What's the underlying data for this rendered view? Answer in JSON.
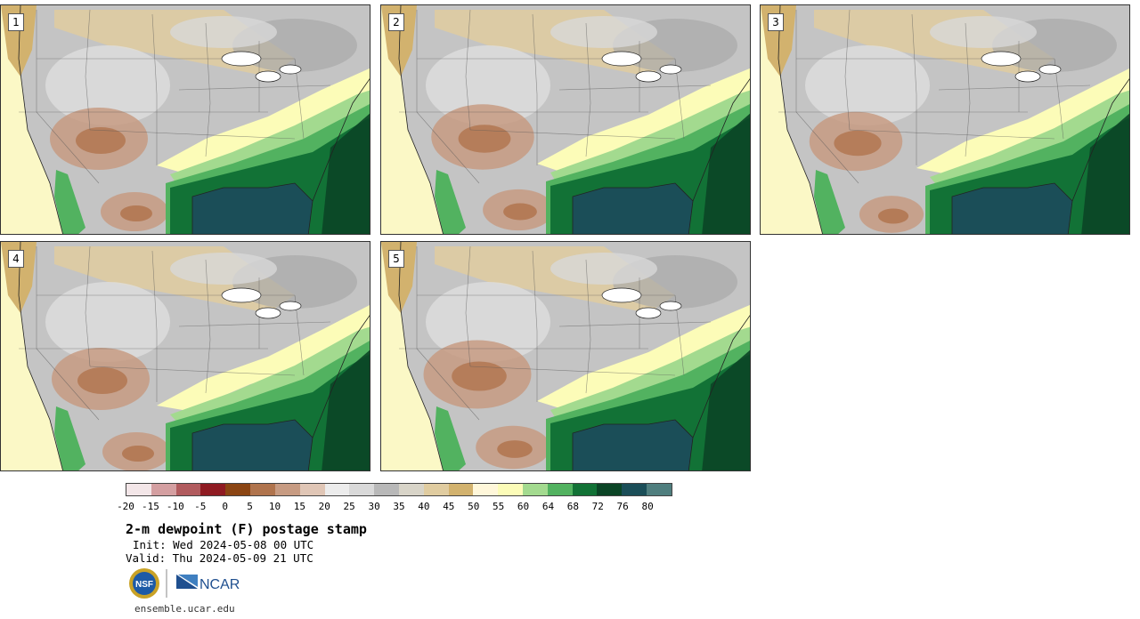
{
  "panels": [
    {
      "label": "1"
    },
    {
      "label": "2"
    },
    {
      "label": "3"
    },
    {
      "label": "4"
    },
    {
      "label": "5"
    }
  ],
  "colorbar": {
    "colors": [
      "#f3e6e8",
      "#d49fa1",
      "#b15b5e",
      "#8f1b22",
      "#8b4513",
      "#b0744d",
      "#c79b82",
      "#e0c6b6",
      "#ececec",
      "#d9d9d9",
      "#b8b8b8",
      "#d8d4c8",
      "#e0cca0",
      "#d2b26e",
      "#fff7da",
      "#fcfcb8",
      "#a3da8f",
      "#52b260",
      "#127236",
      "#0b4526",
      "#1b4e58",
      "#4f7e7e"
    ],
    "tick_labels": [
      "-20",
      "-15",
      "-10",
      "-5",
      "0",
      "5",
      "10",
      "15",
      "20",
      "25",
      "30",
      "35",
      "40",
      "45",
      "50",
      "55",
      "60",
      "64",
      "68",
      "72",
      "76",
      "80"
    ]
  },
  "title": "2-m dewpoint (F) postage stamp",
  "init_text": "Init: Wed 2024-05-08 00 UTC",
  "valid_text": "Valid: Thu 2024-05-09 21 UTC",
  "logos": {
    "nsf": "NSF",
    "ncar": "NCAR"
  },
  "site": "ensemble.ucar.edu"
}
